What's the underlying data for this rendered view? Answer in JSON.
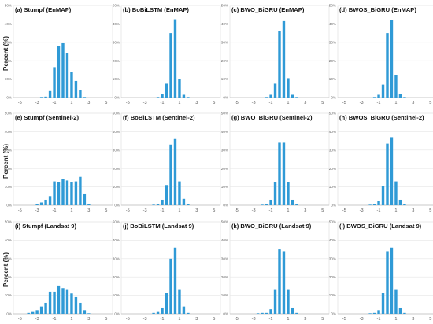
{
  "y_axis_label": "Percent (%)",
  "bar_color": "#2f9ad6",
  "chart_data": [
    {
      "type": "bar",
      "title": "(a) Stumpf (EnMAP)",
      "ylim": [
        0,
        50
      ],
      "y_ticks": [
        "0%",
        "10%",
        "20%",
        "30%",
        "40%",
        "50%"
      ],
      "x": [
        -5.5,
        -5,
        -4.5,
        -4,
        -3.5,
        -3,
        -2.5,
        -2,
        -1.5,
        -1,
        -0.5,
        0,
        0.5,
        1,
        1.5,
        2,
        2.5,
        3,
        3.5,
        4,
        4.5,
        5,
        5.5
      ],
      "x_tick_labels": [
        "-5",
        "-3",
        "-1",
        "1",
        "3",
        "5"
      ],
      "values": [
        0,
        0,
        0,
        0,
        0,
        0,
        0.3,
        0.5,
        3.5,
        16.5,
        28,
        29.5,
        24,
        14,
        9,
        4,
        0.3,
        0,
        0,
        0,
        0,
        0,
        0
      ]
    },
    {
      "type": "bar",
      "title": "(b) BoBiLSTM (EnMAP)",
      "ylim": [
        0,
        50
      ],
      "y_ticks": [
        "0%",
        "10%",
        "20%",
        "30%",
        "40%",
        "50%"
      ],
      "x": [
        -5.5,
        -5,
        -4.5,
        -4,
        -3.5,
        -3,
        -2.5,
        -2,
        -1.5,
        -1,
        -0.5,
        0,
        0.5,
        1,
        1.5,
        2,
        2.5,
        3,
        3.5,
        4,
        4.5,
        5,
        5.5
      ],
      "x_tick_labels": [
        "-5",
        "-3",
        "-1",
        "1",
        "3",
        "5"
      ],
      "values": [
        0,
        0,
        0,
        0,
        0,
        0,
        0,
        0,
        0.3,
        2,
        7.5,
        35,
        42.5,
        10,
        1.5,
        0.3,
        0,
        0,
        0,
        0,
        0,
        0,
        0
      ]
    },
    {
      "type": "bar",
      "title": "(c) BWO_BiGRU (EnMAP)",
      "ylim": [
        0,
        50
      ],
      "y_ticks": [
        "0%",
        "10%",
        "20%",
        "30%",
        "40%",
        "50%"
      ],
      "x": [
        -5.5,
        -5,
        -4.5,
        -4,
        -3.5,
        -3,
        -2.5,
        -2,
        -1.5,
        -1,
        -0.5,
        0,
        0.5,
        1,
        1.5,
        2,
        2.5,
        3,
        3.5,
        4,
        4.5,
        5,
        5.5
      ],
      "x_tick_labels": [
        "-5",
        "-3",
        "-1",
        "1",
        "3",
        "5"
      ],
      "values": [
        0,
        0,
        0,
        0,
        0,
        0,
        0,
        0,
        0.3,
        1.5,
        7.5,
        36,
        41.5,
        10.5,
        1.5,
        0.3,
        0,
        0,
        0,
        0,
        0,
        0,
        0
      ]
    },
    {
      "type": "bar",
      "title": "(d) BWOS_BiGRU (EnMAP)",
      "ylim": [
        0,
        50
      ],
      "y_ticks": [
        "0%",
        "10%",
        "20%",
        "30%",
        "40%",
        "50%"
      ],
      "x": [
        -5.5,
        -5,
        -4.5,
        -4,
        -3.5,
        -3,
        -2.5,
        -2,
        -1.5,
        -1,
        -0.5,
        0,
        0.5,
        1,
        1.5,
        2,
        2.5,
        3,
        3.5,
        4,
        4.5,
        5,
        5.5
      ],
      "x_tick_labels": [
        "-5",
        "-3",
        "-1",
        "1",
        "3",
        "5"
      ],
      "values": [
        0,
        0,
        0,
        0,
        0,
        0,
        0,
        0,
        0.3,
        1.5,
        7,
        35,
        42,
        12,
        2,
        0.3,
        0,
        0,
        0,
        0,
        0,
        0,
        0
      ]
    },
    {
      "type": "bar",
      "title": "(e) Stumpf (Sentinel-2)",
      "ylim": [
        0,
        50
      ],
      "y_ticks": [
        "0%",
        "10%",
        "20%",
        "30%",
        "40%",
        "50%"
      ],
      "x": [
        -5.5,
        -5,
        -4.5,
        -4,
        -3.5,
        -3,
        -2.5,
        -2,
        -1.5,
        -1,
        -0.5,
        0,
        0.5,
        1,
        1.5,
        2,
        2.5,
        3,
        3.5,
        4,
        4.5,
        5,
        5.5
      ],
      "x_tick_labels": [
        "-5",
        "-3",
        "-1",
        "1",
        "3",
        "5"
      ],
      "values": [
        0,
        0,
        0,
        0,
        0,
        0.5,
        1.5,
        3,
        5,
        13,
        12.5,
        14.5,
        13.5,
        12.5,
        13,
        15.5,
        6,
        0.5,
        0,
        0,
        0,
        0,
        0
      ]
    },
    {
      "type": "bar",
      "title": "(f) BoBiLSTM (Sentinel-2)",
      "ylim": [
        0,
        50
      ],
      "y_ticks": [
        "0%",
        "10%",
        "20%",
        "30%",
        "40%",
        "50%"
      ],
      "x": [
        -5.5,
        -5,
        -4.5,
        -4,
        -3.5,
        -3,
        -2.5,
        -2,
        -1.5,
        -1,
        -0.5,
        0,
        0.5,
        1,
        1.5,
        2,
        2.5,
        3,
        3.5,
        4,
        4.5,
        5,
        5.5
      ],
      "x_tick_labels": [
        "-5",
        "-3",
        "-1",
        "1",
        "3",
        "5"
      ],
      "values": [
        0,
        0,
        0,
        0,
        0,
        0,
        0,
        0.3,
        0.5,
        3,
        11,
        33,
        36,
        13,
        3.5,
        0.5,
        0,
        0,
        0,
        0,
        0,
        0,
        0
      ]
    },
    {
      "type": "bar",
      "title": "(g) BWO_BiGRU (Sentinel-2)",
      "ylim": [
        0,
        50
      ],
      "y_ticks": [
        "0%",
        "10%",
        "20%",
        "30%",
        "40%",
        "50%"
      ],
      "x": [
        -5.5,
        -5,
        -4.5,
        -4,
        -3.5,
        -3,
        -2.5,
        -2,
        -1.5,
        -1,
        -0.5,
        0,
        0.5,
        1,
        1.5,
        2,
        2.5,
        3,
        3.5,
        4,
        4.5,
        5,
        5.5
      ],
      "x_tick_labels": [
        "-5",
        "-3",
        "-1",
        "1",
        "3",
        "5"
      ],
      "values": [
        0,
        0,
        0,
        0,
        0,
        0,
        0,
        0.3,
        0.5,
        3,
        12.5,
        34,
        34,
        12.5,
        3,
        0.5,
        0,
        0,
        0,
        0,
        0,
        0,
        0
      ]
    },
    {
      "type": "bar",
      "title": "(h) BWOS_BiGRU (Sentinel-2)",
      "ylim": [
        0,
        50
      ],
      "y_ticks": [
        "0%",
        "10%",
        "20%",
        "30%",
        "40%",
        "50%"
      ],
      "x": [
        -5.5,
        -5,
        -4.5,
        -4,
        -3.5,
        -3,
        -2.5,
        -2,
        -1.5,
        -1,
        -0.5,
        0,
        0.5,
        1,
        1.5,
        2,
        2.5,
        3,
        3.5,
        4,
        4.5,
        5,
        5.5
      ],
      "x_tick_labels": [
        "-5",
        "-3",
        "-1",
        "1",
        "3",
        "5"
      ],
      "values": [
        0,
        0,
        0,
        0,
        0,
        0,
        0,
        0.3,
        0.5,
        2.5,
        10.5,
        33.5,
        37,
        13,
        3,
        0.5,
        0,
        0,
        0,
        0,
        0,
        0,
        0
      ]
    },
    {
      "type": "bar",
      "title": "(i) Stumpf (Landsat 9)",
      "ylim": [
        0,
        50
      ],
      "y_ticks": [
        "0%",
        "10%",
        "20%",
        "30%",
        "40%",
        "50%"
      ],
      "x": [
        -5.5,
        -5,
        -4.5,
        -4,
        -3.5,
        -3,
        -2.5,
        -2,
        -1.5,
        -1,
        -0.5,
        0,
        0.5,
        1,
        1.5,
        2,
        2.5,
        3,
        3.5,
        4,
        4.5,
        5,
        5.5
      ],
      "x_tick_labels": [
        "-5",
        "-3",
        "-1",
        "1",
        "3",
        "5"
      ],
      "values": [
        0,
        0,
        0,
        0.5,
        1,
        2,
        4,
        6,
        12,
        12,
        15,
        14,
        13,
        11,
        9,
        6,
        2,
        0.3,
        0,
        0,
        0,
        0,
        0
      ]
    },
    {
      "type": "bar",
      "title": "(j) BoBiLSTM (Landsat 9)",
      "ylim": [
        0,
        50
      ],
      "y_ticks": [
        "0%",
        "10%",
        "20%",
        "30%",
        "40%",
        "50%"
      ],
      "x": [
        -5.5,
        -5,
        -4.5,
        -4,
        -3.5,
        -3,
        -2.5,
        -2,
        -1.5,
        -1,
        -0.5,
        0,
        0.5,
        1,
        1.5,
        2,
        2.5,
        3,
        3.5,
        4,
        4.5,
        5,
        5.5
      ],
      "x_tick_labels": [
        "-5",
        "-3",
        "-1",
        "1",
        "3",
        "5"
      ],
      "values": [
        0,
        0,
        0,
        0,
        0,
        0,
        0,
        0.5,
        1,
        3,
        11.5,
        30,
        36,
        13,
        4,
        0.5,
        0,
        0,
        0,
        0,
        0,
        0,
        0
      ]
    },
    {
      "type": "bar",
      "title": "(k) BWO_BiGRU (Landsat 9)",
      "ylim": [
        0,
        50
      ],
      "y_ticks": [
        "0%",
        "10%",
        "20%",
        "30%",
        "40%",
        "50%"
      ],
      "x": [
        -5.5,
        -5,
        -4.5,
        -4,
        -3.5,
        -3,
        -2.5,
        -2,
        -1.5,
        -1,
        -0.5,
        0,
        0.5,
        1,
        1.5,
        2,
        2.5,
        3,
        3.5,
        4,
        4.5,
        5,
        5.5
      ],
      "x_tick_labels": [
        "-5",
        "-3",
        "-1",
        "1",
        "3",
        "5"
      ],
      "values": [
        0,
        0,
        0,
        0,
        0,
        0,
        0.3,
        0.5,
        0.5,
        2.5,
        13,
        35,
        34,
        13,
        3,
        0.5,
        0,
        0,
        0,
        0,
        0,
        0,
        0
      ]
    },
    {
      "type": "bar",
      "title": "(l) BWOS_BiGRU (Landsat 9)",
      "ylim": [
        0,
        50
      ],
      "y_ticks": [
        "0%",
        "10%",
        "20%",
        "30%",
        "40%",
        "50%"
      ],
      "x": [
        -5.5,
        -5,
        -4.5,
        -4,
        -3.5,
        -3,
        -2.5,
        -2,
        -1.5,
        -1,
        -0.5,
        0,
        0.5,
        1,
        1.5,
        2,
        2.5,
        3,
        3.5,
        4,
        4.5,
        5,
        5.5
      ],
      "x_tick_labels": [
        "-5",
        "-3",
        "-1",
        "1",
        "3",
        "5"
      ],
      "values": [
        0,
        0,
        0,
        0,
        0,
        0,
        0,
        0.3,
        0.5,
        2,
        11.5,
        34,
        36,
        13,
        3,
        0.5,
        0,
        0,
        0,
        0,
        0,
        0,
        0
      ]
    }
  ]
}
